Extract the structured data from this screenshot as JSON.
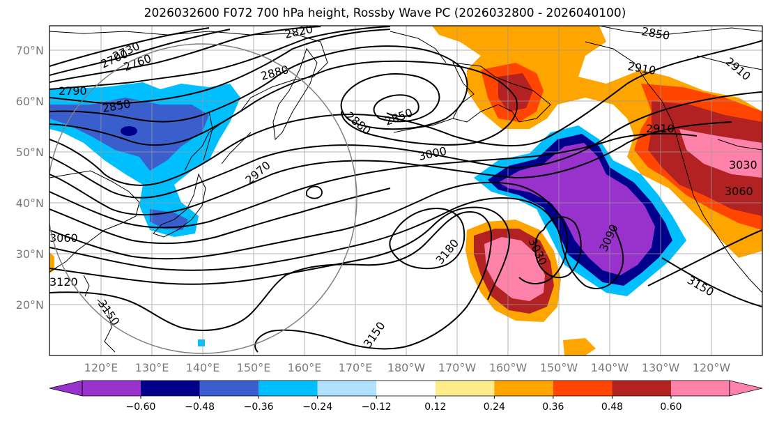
{
  "title": "2026032600 F072 700 hPa height, Rossby Wave PC (2026032800 - 2026040100)",
  "lat_labels": [
    "70°N",
    "60°N",
    "50°N",
    "40°N",
    "30°N",
    "20°N"
  ],
  "lon_labels": [
    "120°E",
    "130°E",
    "140°E",
    "150°E",
    "160°E",
    "170°E",
    "180°W",
    "170°W",
    "160°W",
    "150°W",
    "140°W",
    "130°W",
    "120°W"
  ],
  "contour_labels": [
    "2700",
    "2730",
    "2760",
    "2790",
    "2820",
    "2850",
    "2850",
    "2850",
    "2880",
    "2880",
    "2910",
    "2910",
    "2970",
    "3000",
    "3030",
    "3030",
    "3090",
    "3150",
    "3150",
    "3150",
    "3180",
    "3060",
    "3120",
    "2910",
    "3060"
  ],
  "colorbar": {
    "ticks": [
      "−0.60",
      "−0.48",
      "−0.36",
      "−0.24",
      "−0.12",
      "0.12",
      "0.24",
      "0.36",
      "0.48",
      "0.60"
    ],
    "colors": [
      "#9932cc",
      "#00008b",
      "#3a5fcd",
      "#00bfff",
      "#b0e2ff",
      "#ffffff",
      "#ffec8b",
      "#ffa500",
      "#ff4500",
      "#b22222",
      "#ff82ab"
    ]
  },
  "palette": {
    "purple": "#9932cc",
    "navy": "#00008b",
    "royal": "#3a5fcd",
    "sky": "#00bfff",
    "pale_blue": "#b0e2ff",
    "pale_yellow": "#ffec8b",
    "orange": "#ffa500",
    "orange_red": "#ff4500",
    "firebrick": "#b22222",
    "pink": "#ff82ab"
  }
}
